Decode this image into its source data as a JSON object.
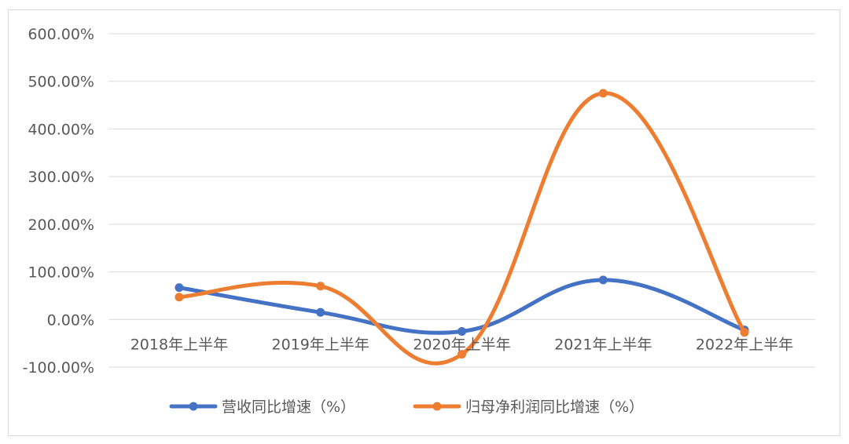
{
  "chart_data": {
    "type": "line",
    "smooth": true,
    "categories": [
      "2018年上半年",
      "2019年上半年",
      "2020年上半年",
      "2021年上半年",
      "2022年上半年"
    ],
    "series": [
      {
        "name": "营收同比增速（%）",
        "color": "#4472C4",
        "values": [
          67,
          15,
          -25,
          83,
          -22
        ]
      },
      {
        "name": "归母净利润同比增速（%）",
        "color": "#ED7D31",
        "values": [
          47,
          70,
          -73,
          475,
          -27
        ]
      }
    ],
    "ylim": [
      -100,
      600
    ],
    "yticks": [
      "600.00%",
      "500.00%",
      "400.00%",
      "300.00%",
      "200.00%",
      "100.00%",
      "0.00%",
      "-100.00%"
    ],
    "grid": true,
    "legend_position": "bottom",
    "title": "",
    "xlabel": "",
    "ylabel": ""
  }
}
